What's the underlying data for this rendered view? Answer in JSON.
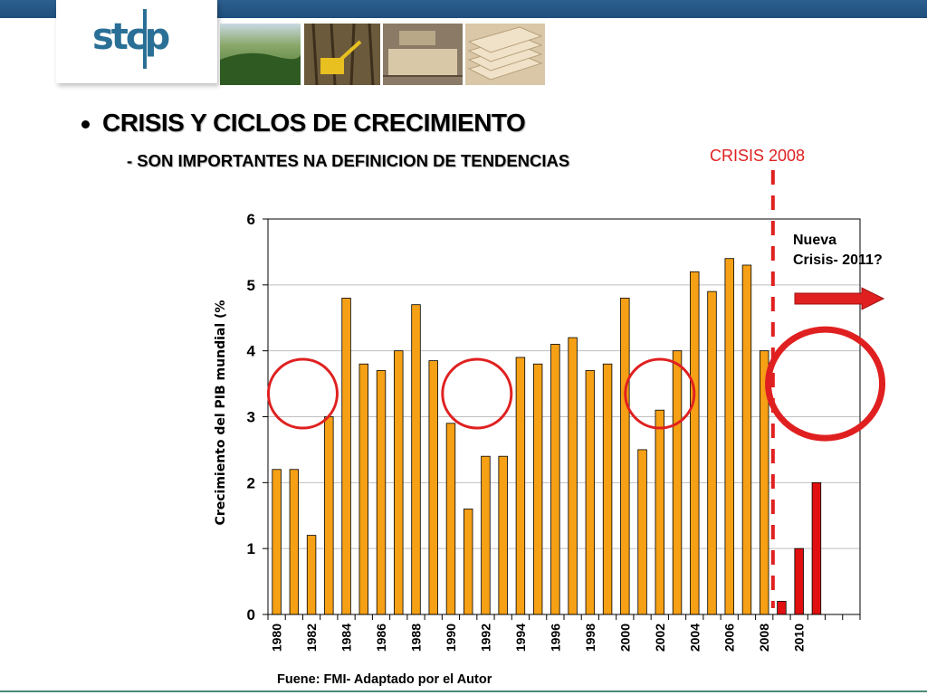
{
  "header": {
    "logo_text": "stcp",
    "photos": [
      "forest-photo",
      "forest-harvester-photo",
      "sawmill-photo",
      "panel-boards-photo"
    ]
  },
  "slide": {
    "title": "CRISIS Y CICLOS DE CRECIMIENTO",
    "subtitle": "- SON IMPORTANTES NA DEFINICION DE TENDENCIAS",
    "crisis_label": "CRISIS 2008",
    "nueva_line1": "Nueva",
    "nueva_line2": "Crisis- 2011?",
    "source": "Fuene: FMI- Adaptado por el Autor"
  },
  "colors": {
    "bar_orange": "#f5a015",
    "bar_red": "#e01010",
    "annotation_red": "#e02020",
    "header_blue": "#2c5f8e"
  },
  "chart_data": {
    "type": "bar",
    "ylabel": "Crecimiento del PIB mundial (%",
    "ylim": [
      0,
      6
    ],
    "yticks": [
      0,
      1,
      2,
      3,
      4,
      5,
      6
    ],
    "grid": true,
    "x": [
      1980,
      1981,
      1982,
      1983,
      1984,
      1985,
      1986,
      1987,
      1988,
      1989,
      1990,
      1991,
      1992,
      1993,
      1994,
      1995,
      1996,
      1997,
      1998,
      1999,
      2000,
      2001,
      2002,
      2003,
      2004,
      2005,
      2006,
      2007,
      2008,
      2009,
      2010,
      2011
    ],
    "xtick_labels": [
      "1980",
      "1982",
      "1984",
      "1986",
      "1988",
      "1990",
      "1992",
      "1994",
      "1996",
      "1998",
      "2000",
      "2002",
      "2004",
      "2006",
      "2008",
      "2010"
    ],
    "series": [
      {
        "values": [
          2.2,
          2.2,
          1.2,
          3.0,
          4.8,
          3.8,
          3.7,
          4.0,
          4.7,
          3.85,
          2.9,
          1.6,
          2.4,
          2.4,
          3.9,
          3.8,
          4.1,
          4.2,
          3.7,
          3.8,
          4.8,
          2.5,
          3.1,
          4.0,
          5.2,
          4.9,
          5.4,
          5.3,
          4.0,
          null,
          null,
          null
        ],
        "color": "#f5a015"
      },
      {
        "values": [
          null,
          null,
          null,
          null,
          null,
          null,
          null,
          null,
          null,
          null,
          null,
          null,
          null,
          null,
          null,
          null,
          null,
          null,
          null,
          null,
          null,
          null,
          null,
          null,
          null,
          null,
          null,
          null,
          null,
          0.2,
          1.0,
          2.0
        ],
        "color": "#e01010"
      }
    ],
    "annotations": {
      "crisis_year": 2008.5,
      "circles_at_years": [
        1981.5,
        1991.5,
        2002
      ],
      "big_circle_at_year": 2011.5
    }
  }
}
